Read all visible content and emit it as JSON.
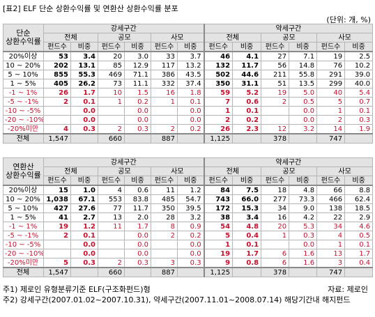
{
  "title": "[표2] ELF 단순 상환수익률 및 연환산 상환수익률 분포",
  "unit": "(단위: 개, %)",
  "headers": {
    "strong": "강세구간",
    "weak": "약세구간",
    "total": "전체",
    "public": "공모",
    "private": "사모",
    "count": "펀드수",
    "ratio": "비중"
  },
  "tables": [
    {
      "row_header_line1": "단순",
      "row_header_line2": "상환수익률",
      "rows": [
        {
          "label": "20%이상",
          "v": [
            "53",
            "3.4",
            "20",
            "3.0",
            "33",
            "3.7",
            "46",
            "4.1",
            "27",
            "7.1",
            "19",
            "2.5"
          ]
        },
        {
          "label": "10 ~ 20%",
          "v": [
            "202",
            "13.1",
            "85",
            "12.9",
            "117",
            "13.2",
            "132",
            "11.7",
            "56",
            "14.8",
            "76",
            "10.2"
          ]
        },
        {
          "label": "5 ~ 10%",
          "v": [
            "855",
            "55.3",
            "469",
            "71.1",
            "386",
            "43.5",
            "502",
            "44.6",
            "211",
            "55.8",
            "291",
            "39.0"
          ]
        },
        {
          "label": "1 ~ 5%",
          "v": [
            "405",
            "26.2",
            "73",
            "11.1",
            "332",
            "37.4",
            "350",
            "31.1",
            "51",
            "13.5",
            "299",
            "40.0"
          ]
        },
        {
          "label": "-1 ~ 1%",
          "v": [
            "26",
            "1.7",
            "10",
            "1.5",
            "16",
            "1.8",
            "59",
            "5.2",
            "19",
            "5.0",
            "40",
            "5.4"
          ]
        },
        {
          "label": "-5 ~ -1%",
          "v": [
            "2",
            "0.1",
            "1",
            "0.2",
            "1",
            "0.1",
            "7",
            "0.6",
            "2",
            "0.5",
            "5",
            "0.7"
          ]
        },
        {
          "label": "-10 ~ -5%",
          "v": [
            "",
            "0.0",
            "",
            "0.0",
            "",
            "0.0",
            "1",
            "0.1",
            "",
            "0.0",
            "1",
            "0.1"
          ]
        },
        {
          "label": "-20 ~ -10%",
          "v": [
            "",
            "0.0",
            "",
            "0.0",
            "",
            "0.0",
            "2",
            "0.2",
            "",
            "0.0",
            "2",
            "0.3"
          ]
        },
        {
          "label": "-20%미만",
          "v": [
            "4",
            "0.3",
            "2",
            "0.3",
            "2",
            "0.2",
            "26",
            "2.3",
            "12",
            "3.2",
            "14",
            "1.9"
          ]
        }
      ],
      "total": {
        "label": "전체",
        "v": [
          "1,547",
          "",
          "660",
          "",
          "887",
          "",
          "1,125",
          "",
          "378",
          "",
          "747",
          ""
        ]
      }
    },
    {
      "row_header_line1": "연환산",
      "row_header_line2": "상환수익률",
      "rows": [
        {
          "label": "20%이상",
          "v": [
            "15",
            "1.0",
            "4",
            "0.6",
            "11",
            "1.2",
            "84",
            "7.5",
            "18",
            "4.8",
            "66",
            "8.8"
          ]
        },
        {
          "label": "10 ~ 20%",
          "v": [
            "1,038",
            "67.1",
            "553",
            "83.8",
            "485",
            "54.7",
            "743",
            "66.0",
            "277",
            "73.3",
            "466",
            "62.4"
          ]
        },
        {
          "label": "5 ~ 10%",
          "v": [
            "427",
            "27.6",
            "77",
            "11.7",
            "350",
            "39.5",
            "172",
            "15.3",
            "34",
            "9.0",
            "138",
            "18.5"
          ]
        },
        {
          "label": "1 ~ 5%",
          "v": [
            "41",
            "2.7",
            "13",
            "2.0",
            "28",
            "3.2",
            "38",
            "3.4",
            "16",
            "4.2",
            "22",
            "2.9"
          ]
        },
        {
          "label": "-1 ~ 1%",
          "v": [
            "19",
            "1.2",
            "11",
            "1.7",
            "8",
            "0.9",
            "54",
            "4.8",
            "20",
            "5.3",
            "34",
            "4.6"
          ]
        },
        {
          "label": "-5 ~ -1%",
          "v": [
            "2",
            "0.1",
            "",
            "0.0",
            "2",
            "0.2",
            "5",
            "0.4",
            "1",
            "0.3",
            "4",
            "0.5"
          ]
        },
        {
          "label": "-10 ~ -5%",
          "v": [
            "",
            "0.0",
            "",
            "0.0",
            "",
            "0.0",
            "1",
            "0.1",
            "",
            "0.0",
            "1",
            "0.1"
          ]
        },
        {
          "label": "-20 ~ -10%",
          "v": [
            "",
            "0.0",
            "",
            "0.0",
            "",
            "0.0",
            "19",
            "1.7",
            "6",
            "1.6",
            "13",
            "1.7"
          ]
        },
        {
          "label": "-20%미만",
          "v": [
            "5",
            "0.3",
            "2",
            "0.3",
            "3",
            "0.3",
            "9",
            "0.8",
            "6",
            "1.6",
            "3",
            "0.4"
          ]
        }
      ],
      "total": {
        "label": "전체",
        "v": [
          "1,547",
          "",
          "660",
          "",
          "887",
          "",
          "1,125",
          "",
          "378",
          "",
          "747",
          ""
        ]
      }
    }
  ],
  "notes": {
    "note1": "주1) 제로인 유형분류기준 ELF(구조화펀드)형",
    "note2": "주2) 강세구간(2007.01.02~2007.10.31), 약세구간(2007.11.01~2008.07.14) 해당기간내 해지펀드",
    "source": "자료: 제로인"
  },
  "colors": {
    "negative_text": "#c8102e",
    "header_bg": "#e3e3e3",
    "border": "#b5b5b5"
  }
}
